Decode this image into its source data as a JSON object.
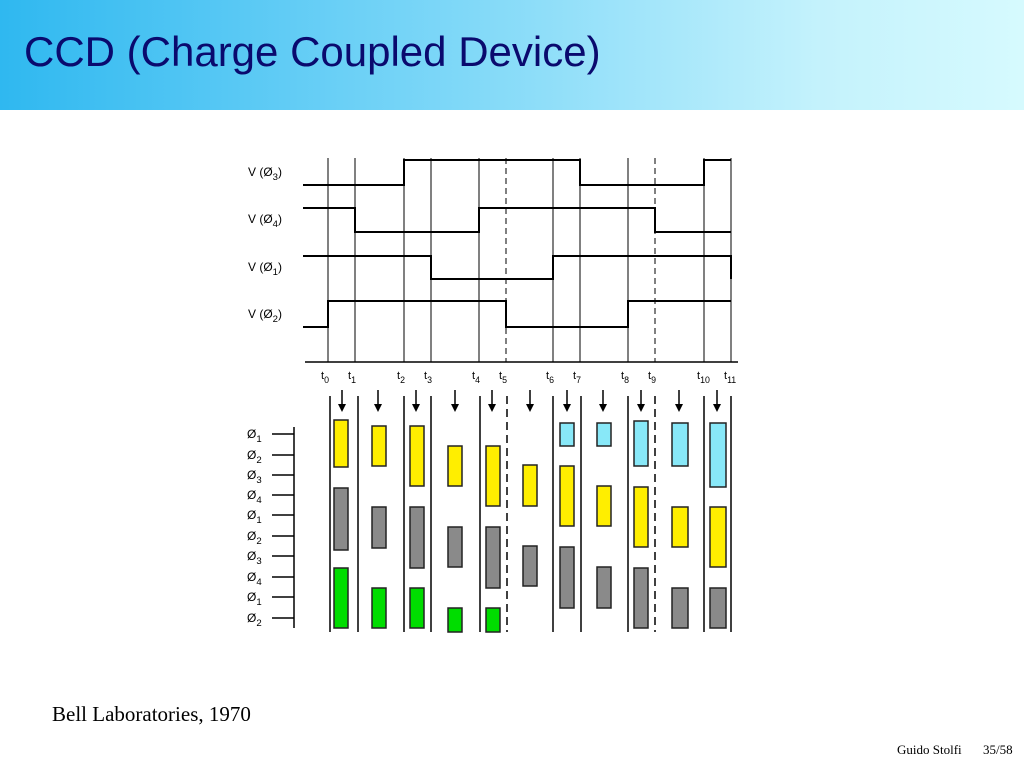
{
  "slide": {
    "title": "CCD (Charge Coupled Device)",
    "caption": "Bell Laboratories, 1970",
    "author": "Guido Stolfi",
    "page": "35/58"
  },
  "diagram": {
    "signals": [
      {
        "label": "V (Ø",
        "sub": "3",
        "suffix": ")"
      },
      {
        "label": "V (Ø",
        "sub": "4",
        "suffix": ")"
      },
      {
        "label": "V (Ø",
        "sub": "1",
        "suffix": ")"
      },
      {
        "label": "V (Ø",
        "sub": "2",
        "suffix": ")"
      }
    ],
    "times": [
      {
        "t": "t",
        "sub": "0"
      },
      {
        "t": "t",
        "sub": "1"
      },
      {
        "t": "t",
        "sub": "2"
      },
      {
        "t": "t",
        "sub": "3"
      },
      {
        "t": "t",
        "sub": "4"
      },
      {
        "t": "t",
        "sub": "5"
      },
      {
        "t": "t",
        "sub": "6"
      },
      {
        "t": "t",
        "sub": "7"
      },
      {
        "t": "t",
        "sub": "8"
      },
      {
        "t": "t",
        "sub": "9"
      },
      {
        "t": "t",
        "sub": "10"
      },
      {
        "t": "t",
        "sub": "11"
      }
    ],
    "electrodes": [
      {
        "t": "Ø",
        "sub": "1"
      },
      {
        "t": "Ø",
        "sub": "2"
      },
      {
        "t": "Ø",
        "sub": "3"
      },
      {
        "t": "Ø",
        "sub": "4"
      },
      {
        "t": "Ø",
        "sub": "1"
      },
      {
        "t": "Ø",
        "sub": "2"
      },
      {
        "t": "Ø",
        "sub": "3"
      },
      {
        "t": "Ø",
        "sub": "4"
      },
      {
        "t": "Ø",
        "sub": "1"
      },
      {
        "t": "Ø",
        "sub": "2"
      }
    ],
    "colors": {
      "line": "#000000",
      "yellow": "#ffee00",
      "cyan": "#88e8f8",
      "green": "#00dd00",
      "grey": "#8a8a8a"
    }
  }
}
